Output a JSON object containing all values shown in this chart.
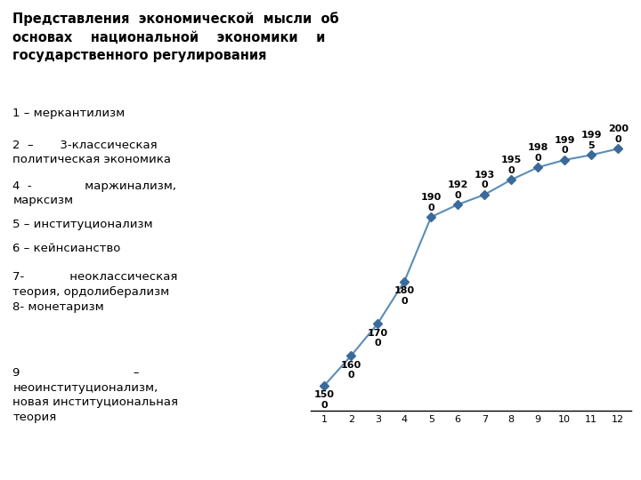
{
  "x": [
    1,
    2,
    3,
    4,
    5,
    6,
    7,
    8,
    9,
    10,
    11,
    12
  ],
  "y": [
    1.0,
    2.2,
    3.5,
    5.2,
    7.8,
    8.3,
    8.7,
    9.3,
    9.8,
    10.1,
    10.3,
    10.55
  ],
  "ylim": [
    0,
    12
  ],
  "labels_display": [
    "150\n0",
    "160\n0",
    "170\n0",
    "180\n0",
    "190\n0",
    "192\n0",
    "193\n0",
    "195\n0",
    "198\n0",
    "199\n0",
    "199\n5",
    "200\n0"
  ],
  "label_above": [
    false,
    false,
    false,
    false,
    true,
    true,
    true,
    true,
    true,
    true,
    true,
    true
  ],
  "line_color": "#5b8db8",
  "marker_color": "#3a6a99",
  "marker": "D",
  "marker_size": 5,
  "linewidth": 1.5,
  "background_color": "#ffffff",
  "xlim": [
    0.5,
    12.5
  ],
  "xticks": [
    1,
    2,
    3,
    4,
    5,
    6,
    7,
    8,
    9,
    10,
    11,
    12
  ],
  "label_fontsize": 8.0,
  "xtick_fontsize": 8.0,
  "title_line1": "Представления  экономической  мысли  об",
  "title_line2": "основах    национальной    экономики    и",
  "title_line3": "государственного регулирования",
  "title_fontsize": 10.5,
  "legend_fontsize": 9.5,
  "legend_lines": [
    "1 – меркантилизм",
    "2  –       3-классическая\nполитическая экономика",
    "4  -              маржинализм,\nмарксизм",
    "5 – институционализм",
    "6 – кейнсианство",
    "7-            неоклассическая\nтеория, ордолиберализм",
    "8- монетаризм",
    "9                              –\nнеоинституционализм,\nновая институциональная\nтеория"
  ]
}
